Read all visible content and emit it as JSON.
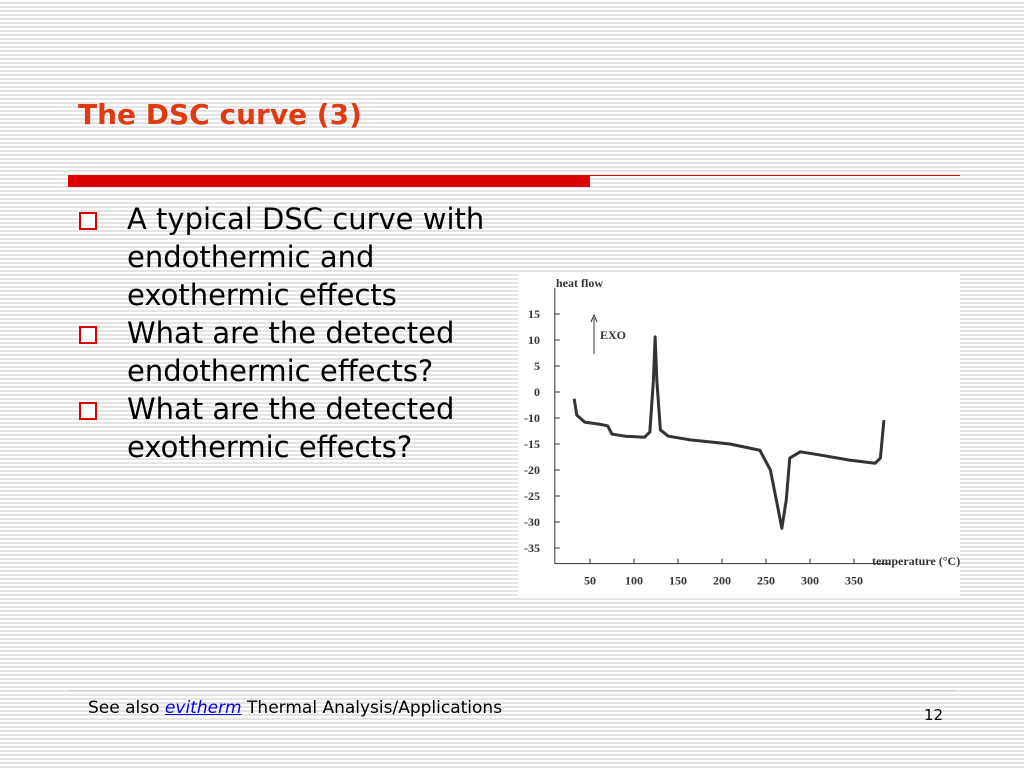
{
  "slide": {
    "title": "The DSC curve (3)",
    "bullets": [
      "A typical DSC curve with endothermic and exothermic effects",
      "What are the detected endothermic effects?",
      "What are the detected exothermic effects?"
    ],
    "footer": {
      "prefix": "See also",
      "link": "evitherm",
      "suffix": "Thermal Analysis/Applications"
    },
    "page_number": "12"
  },
  "chart_data": {
    "type": "line",
    "y_label": "heat flow",
    "x_label": "temperature (°C)",
    "annotation": "EXO",
    "x": [
      32,
      35,
      44,
      61,
      70,
      75,
      90,
      112,
      118,
      122,
      124,
      126,
      130,
      139,
      164,
      209,
      243,
      255,
      264,
      268,
      273,
      277,
      289,
      311,
      345,
      374,
      380,
      384
    ],
    "series": [
      {
        "color": "#333333",
        "values": [
          -2.6,
          -8.9,
          -10.8,
          -11.2,
          -11.5,
          -13.1,
          -13.5,
          -13.7,
          -12.7,
          2.1,
          10.6,
          2.1,
          -12.3,
          -13.5,
          -14.2,
          -15.0,
          -16.2,
          -20,
          -27.7,
          -31.2,
          -25.8,
          -17.7,
          -16.5,
          -17.1,
          -18.1,
          -18.7,
          -17.7,
          -10.4
        ]
      }
    ],
    "xlim": [
      10,
      390
    ],
    "xticks": [
      50,
      100,
      150,
      200,
      250,
      300,
      350
    ],
    "ylim": [
      -38,
      20
    ],
    "yticks": [
      15,
      10,
      5,
      0,
      -10,
      -15,
      -20,
      -25,
      -30,
      -35
    ]
  }
}
